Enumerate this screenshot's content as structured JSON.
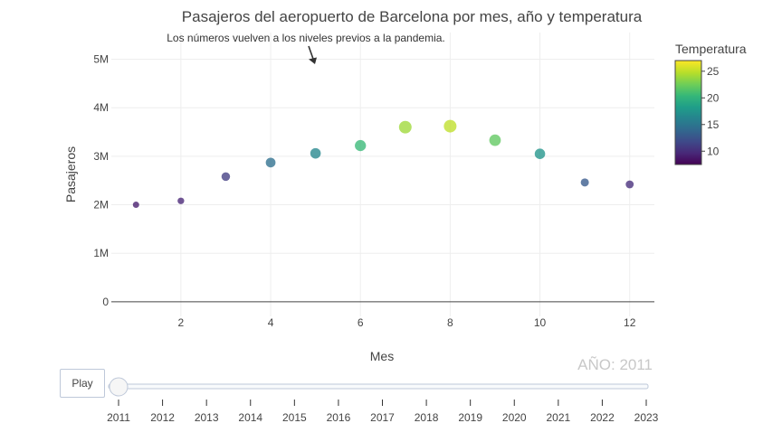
{
  "chart_data": {
    "type": "scatter",
    "title": "Pasajeros del aeropuerto de Barcelona por mes, año y temperatura",
    "xlabel": "Mes",
    "ylabel": "Pasajeros",
    "xlim": [
      0.45,
      12.55
    ],
    "ylim": [
      -0.3,
      5.55
    ],
    "x_ticks": [
      2,
      4,
      6,
      8,
      10,
      12
    ],
    "y_ticks": [
      0,
      1,
      2,
      3,
      4,
      5
    ],
    "y_tick_labels": [
      "0",
      "1M",
      "2M",
      "3M",
      "4M",
      "5M"
    ],
    "grid": true,
    "points": [
      {
        "x": 1,
        "y": 2.0,
        "temperature": 9
      },
      {
        "x": 2,
        "y": 2.08,
        "temperature": 9.5
      },
      {
        "x": 3,
        "y": 2.58,
        "temperature": 11
      },
      {
        "x": 4,
        "y": 2.87,
        "temperature": 14.5
      },
      {
        "x": 5,
        "y": 3.06,
        "temperature": 16.5
      },
      {
        "x": 6,
        "y": 3.22,
        "temperature": 20.5
      },
      {
        "x": 7,
        "y": 3.6,
        "temperature": 24
      },
      {
        "x": 8,
        "y": 3.62,
        "temperature": 25
      },
      {
        "x": 9,
        "y": 3.33,
        "temperature": 22
      },
      {
        "x": 10,
        "y": 3.05,
        "temperature": 17.5
      },
      {
        "x": 11,
        "y": 2.46,
        "temperature": 13
      },
      {
        "x": 12,
        "y": 2.42,
        "temperature": 10
      }
    ],
    "annotation": {
      "text": "Los números vuelven a los niveles previos a la pandemia.",
      "x": 5,
      "y": 5.0
    },
    "colorbar": {
      "title": "Temperatura",
      "min": 7.5,
      "max": 27,
      "ticks": [
        10,
        15,
        20,
        25
      ],
      "colorscale": "viridis"
    },
    "current_frame_label": "AÑO: 2011"
  },
  "controls": {
    "play_label": "Play",
    "slider_years": [
      "2011",
      "2012",
      "2013",
      "2014",
      "2015",
      "2016",
      "2017",
      "2018",
      "2019",
      "2020",
      "2021",
      "2022",
      "2023"
    ],
    "slider_value": "2011"
  }
}
